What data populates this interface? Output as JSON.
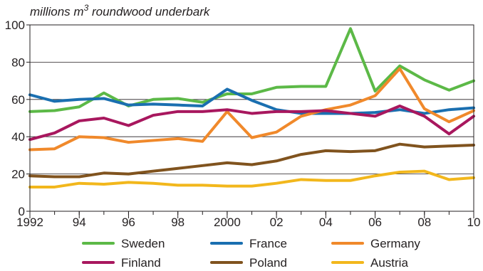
{
  "chart_data": {
    "type": "line",
    "title": "",
    "unit_label": {
      "prefix": "millions m",
      "superscript": "3",
      "suffix": " roundwood underbark"
    },
    "xlabel": "",
    "ylabel": "",
    "x": [
      1992,
      1993,
      1994,
      1995,
      1996,
      1997,
      1998,
      1999,
      2000,
      2001,
      2002,
      2003,
      2004,
      2005,
      2006,
      2007,
      2008,
      2009,
      2010
    ],
    "xlim": [
      1992,
      2010
    ],
    "ylim": [
      0,
      100
    ],
    "x_ticks": [
      {
        "value": 1992,
        "label": "1992"
      },
      {
        "value": 1994,
        "label": "94"
      },
      {
        "value": 1996,
        "label": "96"
      },
      {
        "value": 1998,
        "label": "98"
      },
      {
        "value": 2000,
        "label": "2000"
      },
      {
        "value": 2002,
        "label": "02"
      },
      {
        "value": 2004,
        "label": "04"
      },
      {
        "value": 2006,
        "label": "06"
      },
      {
        "value": 2008,
        "label": "08"
      },
      {
        "value": 2010,
        "label": "10"
      }
    ],
    "y_ticks": [
      {
        "value": 0,
        "label": "0"
      },
      {
        "value": 20,
        "label": "20"
      },
      {
        "value": 40,
        "label": "40"
      },
      {
        "value": 60,
        "label": "60"
      },
      {
        "value": 80,
        "label": "80"
      },
      {
        "value": 100,
        "label": "100"
      }
    ],
    "grid": "horizontal",
    "legend_position": "bottom",
    "series": [
      {
        "name": "Sweden",
        "color": "#5cb947",
        "values": [
          53.5,
          54,
          56,
          63.5,
          56.5,
          60,
          60.5,
          58.5,
          63,
          63,
          66.5,
          67,
          67,
          98,
          64.5,
          78,
          70.5,
          65,
          70
        ]
      },
      {
        "name": "France",
        "color": "#1a6fb0",
        "values": [
          62.5,
          59,
          60,
          60.5,
          57,
          57.5,
          57,
          56.5,
          65.5,
          59.5,
          54.5,
          52.5,
          52.5,
          52.5,
          53,
          54.5,
          52.5,
          54.5,
          55.5
        ]
      },
      {
        "name": "Germany",
        "color": "#f0892b",
        "values": [
          33,
          33.5,
          40,
          39.5,
          37,
          38,
          39,
          37.5,
          53.5,
          39.5,
          42.5,
          51,
          54.5,
          57,
          62,
          76.5,
          55,
          48,
          54
        ]
      },
      {
        "name": "Finland",
        "color": "#a8175e",
        "values": [
          38.5,
          42,
          48.5,
          50,
          46,
          51.5,
          53.5,
          53.5,
          54.5,
          52.5,
          53.5,
          53.5,
          54,
          52.5,
          51,
          56.5,
          51,
          41.5,
          51
        ]
      },
      {
        "name": "Poland",
        "color": "#80531e",
        "values": [
          19,
          18.5,
          18.5,
          20.5,
          20,
          21.5,
          23,
          24.5,
          26,
          25,
          27,
          30.5,
          32.5,
          32,
          32.5,
          36,
          34.5,
          35,
          35.5
        ]
      },
      {
        "name": "Austria",
        "color": "#f2b71c",
        "values": [
          13,
          13,
          15,
          14.5,
          15.5,
          15,
          14,
          14,
          13.5,
          13.5,
          15,
          17,
          16.5,
          16.5,
          19,
          21,
          21.5,
          17,
          18
        ]
      }
    ]
  }
}
